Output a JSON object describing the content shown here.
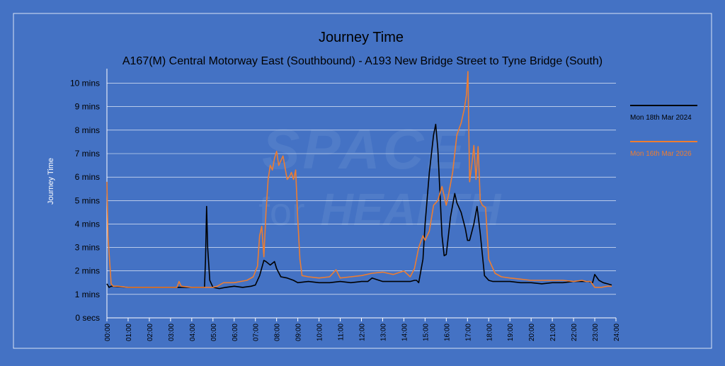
{
  "colors": {
    "background": "#4472c4",
    "frame": "#ffffff",
    "gridline": "#ffffff",
    "series_2024": "#000000",
    "series_2026": "#ed7d31",
    "watermark": "#5a85cc"
  },
  "watermark": {
    "line1": "SPACE",
    "line2_a": "for",
    "line2_b": "HEALTH"
  },
  "chart_data": {
    "type": "line",
    "title": "Journey Time",
    "subtitle": "A167(M) Central Motorway East (Southbound) - A193 New Bridge Street to Tyne Bridge (South)",
    "xlabel": "",
    "ylabel": "Journey Time",
    "x_unit": "hours",
    "xlim": [
      0,
      24
    ],
    "x_ticks": [
      0,
      1,
      2,
      3,
      4,
      5,
      6,
      7,
      8,
      9,
      10,
      11,
      12,
      13,
      14,
      15,
      16,
      17,
      18,
      19,
      20,
      21,
      22,
      23,
      24
    ],
    "x_tick_labels": [
      "00:00",
      "01:00",
      "02:00",
      "03:00",
      "04:00",
      "05:00",
      "06:00",
      "07:00",
      "08:00",
      "09:00",
      "10:00",
      "11:00",
      "12:00",
      "13:00",
      "14:00",
      "15:00",
      "16:00",
      "17:00",
      "18:00",
      "19:00",
      "20:00",
      "21:00",
      "22:00",
      "23:00",
      "24:00"
    ],
    "y_unit": "mins",
    "ylim": [
      0,
      10.5
    ],
    "y_ticks": [
      0,
      1,
      2,
      3,
      4,
      5,
      6,
      7,
      8,
      9,
      10
    ],
    "y_tick_labels": [
      "0 secs",
      "1 mins",
      "2 mins",
      "3 mins",
      "4 mins",
      "5 mins",
      "6 mins",
      "7 mins",
      "8 mins",
      "9 mins",
      "10 mins"
    ],
    "grid": true,
    "legend_position": "right",
    "series": [
      {
        "name": "Mon 18th Mar 2024",
        "color": "#000000",
        "x": [
          0.0,
          0.1,
          0.2,
          1.0,
          2.0,
          3.0,
          4.0,
          4.5,
          4.6,
          4.65,
          4.7,
          4.75,
          4.85,
          5.0,
          5.3,
          5.6,
          6.0,
          6.4,
          6.8,
          7.0,
          7.2,
          7.4,
          7.5,
          7.7,
          7.9,
          8.0,
          8.2,
          8.5,
          8.8,
          9.0,
          9.5,
          10.0,
          10.5,
          11.0,
          11.5,
          12.0,
          12.3,
          12.5,
          13.0,
          13.5,
          14.0,
          14.3,
          14.5,
          14.6,
          14.7,
          14.9,
          15.0,
          15.2,
          15.4,
          15.5,
          15.6,
          15.8,
          15.9,
          16.0,
          16.2,
          16.4,
          16.5,
          16.7,
          16.9,
          17.0,
          17.1,
          17.3,
          17.45,
          17.6,
          17.8,
          18.0,
          18.2,
          18.5,
          19.0,
          19.5,
          20.0,
          20.5,
          21.0,
          21.5,
          22.0,
          22.4,
          22.7,
          22.9,
          23.0,
          23.2,
          23.4,
          23.6,
          23.8
        ],
        "y": [
          1.45,
          1.3,
          1.35,
          1.3,
          1.3,
          1.3,
          1.3,
          1.3,
          1.3,
          2.5,
          4.75,
          3.0,
          1.6,
          1.3,
          1.25,
          1.3,
          1.35,
          1.3,
          1.35,
          1.4,
          1.8,
          2.45,
          2.4,
          2.25,
          2.4,
          2.1,
          1.75,
          1.7,
          1.6,
          1.5,
          1.55,
          1.5,
          1.5,
          1.55,
          1.5,
          1.55,
          1.55,
          1.7,
          1.55,
          1.55,
          1.55,
          1.55,
          1.6,
          1.6,
          1.5,
          2.5,
          4.0,
          6.2,
          7.8,
          8.25,
          7.2,
          3.5,
          2.65,
          2.7,
          4.3,
          5.3,
          4.9,
          4.5,
          3.8,
          3.3,
          3.3,
          4.0,
          4.75,
          3.6,
          1.8,
          1.6,
          1.55,
          1.55,
          1.55,
          1.5,
          1.5,
          1.45,
          1.5,
          1.5,
          1.55,
          1.55,
          1.55,
          1.5,
          1.85,
          1.6,
          1.5,
          1.45,
          1.4
        ]
      },
      {
        "name": "Mon 16th Mar 2026",
        "color": "#ed7d31",
        "x": [
          0.0,
          0.05,
          0.1,
          0.2,
          0.3,
          0.5,
          1.0,
          2.0,
          3.0,
          3.3,
          3.4,
          3.5,
          4.0,
          4.5,
          4.6,
          5.0,
          5.2,
          5.5,
          6.0,
          6.3,
          6.6,
          6.9,
          7.1,
          7.2,
          7.3,
          7.4,
          7.5,
          7.6,
          7.7,
          7.8,
          7.9,
          8.0,
          8.1,
          8.3,
          8.5,
          8.6,
          8.7,
          8.8,
          8.9,
          9.0,
          9.1,
          9.2,
          9.5,
          10.0,
          10.5,
          10.8,
          11.0,
          11.5,
          12.0,
          12.5,
          13.0,
          13.5,
          14.0,
          14.3,
          14.5,
          14.7,
          14.9,
          15.0,
          15.2,
          15.4,
          15.6,
          15.8,
          16.0,
          16.1,
          16.3,
          16.5,
          16.7,
          16.85,
          16.95,
          17.02,
          17.1,
          17.2,
          17.3,
          17.4,
          17.5,
          17.6,
          17.7,
          17.85,
          18.0,
          18.3,
          18.6,
          19.0,
          19.5,
          20.0,
          20.5,
          21.0,
          21.5,
          22.0,
          22.4,
          22.6,
          22.8,
          23.0,
          23.3,
          23.6,
          23.8
        ],
        "y": [
          5.8,
          3.5,
          2.8,
          1.45,
          1.35,
          1.35,
          1.3,
          1.3,
          1.3,
          1.3,
          1.55,
          1.35,
          1.3,
          1.3,
          1.3,
          1.3,
          1.35,
          1.5,
          1.5,
          1.55,
          1.6,
          1.75,
          2.2,
          3.5,
          3.9,
          2.6,
          4.5,
          5.9,
          6.5,
          6.3,
          6.8,
          7.1,
          6.5,
          6.9,
          5.9,
          6.0,
          6.2,
          5.9,
          6.3,
          4.2,
          2.5,
          1.8,
          1.75,
          1.7,
          1.75,
          2.05,
          1.7,
          1.75,
          1.8,
          1.9,
          1.95,
          1.85,
          2.0,
          1.75,
          2.1,
          3.0,
          3.5,
          3.3,
          3.7,
          4.8,
          5.0,
          5.6,
          4.8,
          5.2,
          6.2,
          7.8,
          8.3,
          8.9,
          9.5,
          10.5,
          5.8,
          6.5,
          7.35,
          5.9,
          7.3,
          5.0,
          4.8,
          4.7,
          2.5,
          1.9,
          1.75,
          1.7,
          1.65,
          1.6,
          1.6,
          1.6,
          1.6,
          1.55,
          1.6,
          1.55,
          1.55,
          1.3,
          1.3,
          1.35,
          1.35
        ]
      }
    ]
  }
}
